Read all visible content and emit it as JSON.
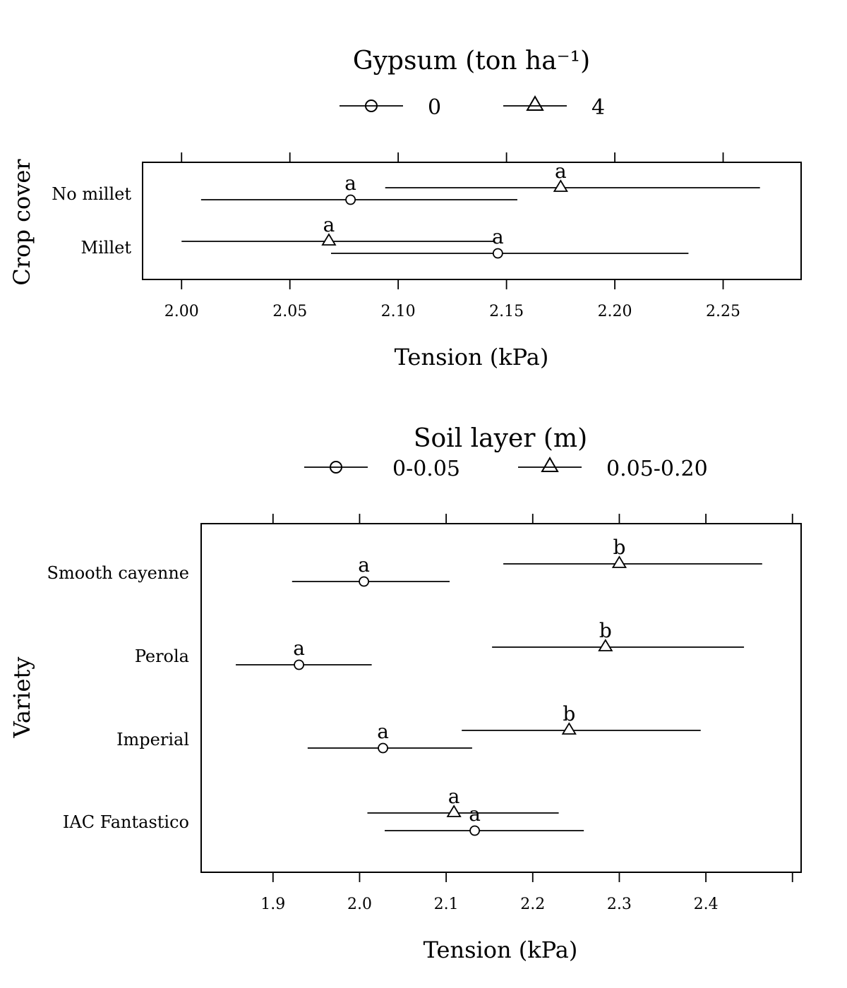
{
  "chart_data": [
    {
      "type": "scatter",
      "legend": {
        "title": "Gypsum (ton ha⁻¹)",
        "entries": [
          {
            "name": "0",
            "marker": "circle"
          },
          {
            "name": "4",
            "marker": "triangle"
          }
        ]
      },
      "ylabel": "Crop cover",
      "xlabel": "Tension (kPa)",
      "xlim": [
        1.982,
        2.286
      ],
      "xticks": [
        2.0,
        2.05,
        2.1,
        2.15,
        2.2,
        2.25
      ],
      "xtick_labels": [
        "2.00",
        "2.05",
        "2.10",
        "2.15",
        "2.20",
        "2.25"
      ],
      "categories": [
        "No millet",
        "Millet"
      ],
      "series": [
        {
          "name": "0",
          "marker": "circle",
          "points": [
            {
              "category": "No millet",
              "value": 2.078,
              "low": 2.009,
              "high": 2.155,
              "letter": "a"
            },
            {
              "category": "Millet",
              "value": 2.146,
              "low": 2.069,
              "high": 2.234,
              "letter": "a"
            }
          ]
        },
        {
          "name": "4",
          "marker": "triangle",
          "points": [
            {
              "category": "No millet",
              "value": 2.175,
              "low": 2.094,
              "high": 2.267,
              "letter": "a"
            },
            {
              "category": "Millet",
              "value": 2.068,
              "low": 2.0,
              "high": 2.144,
              "letter": "a"
            }
          ]
        }
      ]
    },
    {
      "type": "scatter",
      "legend": {
        "title": "Soil layer (m)",
        "entries": [
          {
            "name": "0-0.05",
            "marker": "circle"
          },
          {
            "name": "0.05-0.20",
            "marker": "triangle"
          }
        ]
      },
      "ylabel": "Variety",
      "xlabel": "Tension (kPa)",
      "xlim": [
        1.817,
        2.51
      ],
      "xticks": [
        1.9,
        2.0,
        2.1,
        2.2,
        2.3,
        2.4,
        2.5
      ],
      "xtick_labels": [
        "1.9",
        "2.0",
        "2.1",
        "2.2",
        "2.3",
        "2.4",
        ""
      ],
      "categories": [
        "Smooth cayenne",
        "Perola",
        "Imperial",
        "IAC Fantastico"
      ],
      "series": [
        {
          "name": "0-0.05",
          "marker": "circle",
          "points": [
            {
              "category": "Smooth cayenne",
              "value": 2.005,
              "low": 1.922,
              "high": 2.104,
              "letter": "a"
            },
            {
              "category": "Perola",
              "value": 1.93,
              "low": 1.857,
              "high": 2.014,
              "letter": "a"
            },
            {
              "category": "Imperial",
              "value": 2.027,
              "low": 1.94,
              "high": 2.13,
              "letter": "a"
            },
            {
              "category": "IAC Fantastico",
              "value": 2.133,
              "low": 2.029,
              "high": 2.259,
              "letter": "a"
            }
          ]
        },
        {
          "name": "0.05-0.20",
          "marker": "triangle",
          "points": [
            {
              "category": "Smooth cayenne",
              "value": 2.3,
              "low": 2.166,
              "high": 2.465,
              "letter": "b"
            },
            {
              "category": "Perola",
              "value": 2.284,
              "low": 2.153,
              "high": 2.444,
              "letter": "b"
            },
            {
              "category": "Imperial",
              "value": 2.242,
              "low": 2.118,
              "high": 2.394,
              "letter": "b"
            },
            {
              "category": "IAC Fantastico",
              "value": 2.109,
              "low": 2.009,
              "high": 2.23,
              "letter": "a"
            }
          ]
        }
      ]
    }
  ]
}
